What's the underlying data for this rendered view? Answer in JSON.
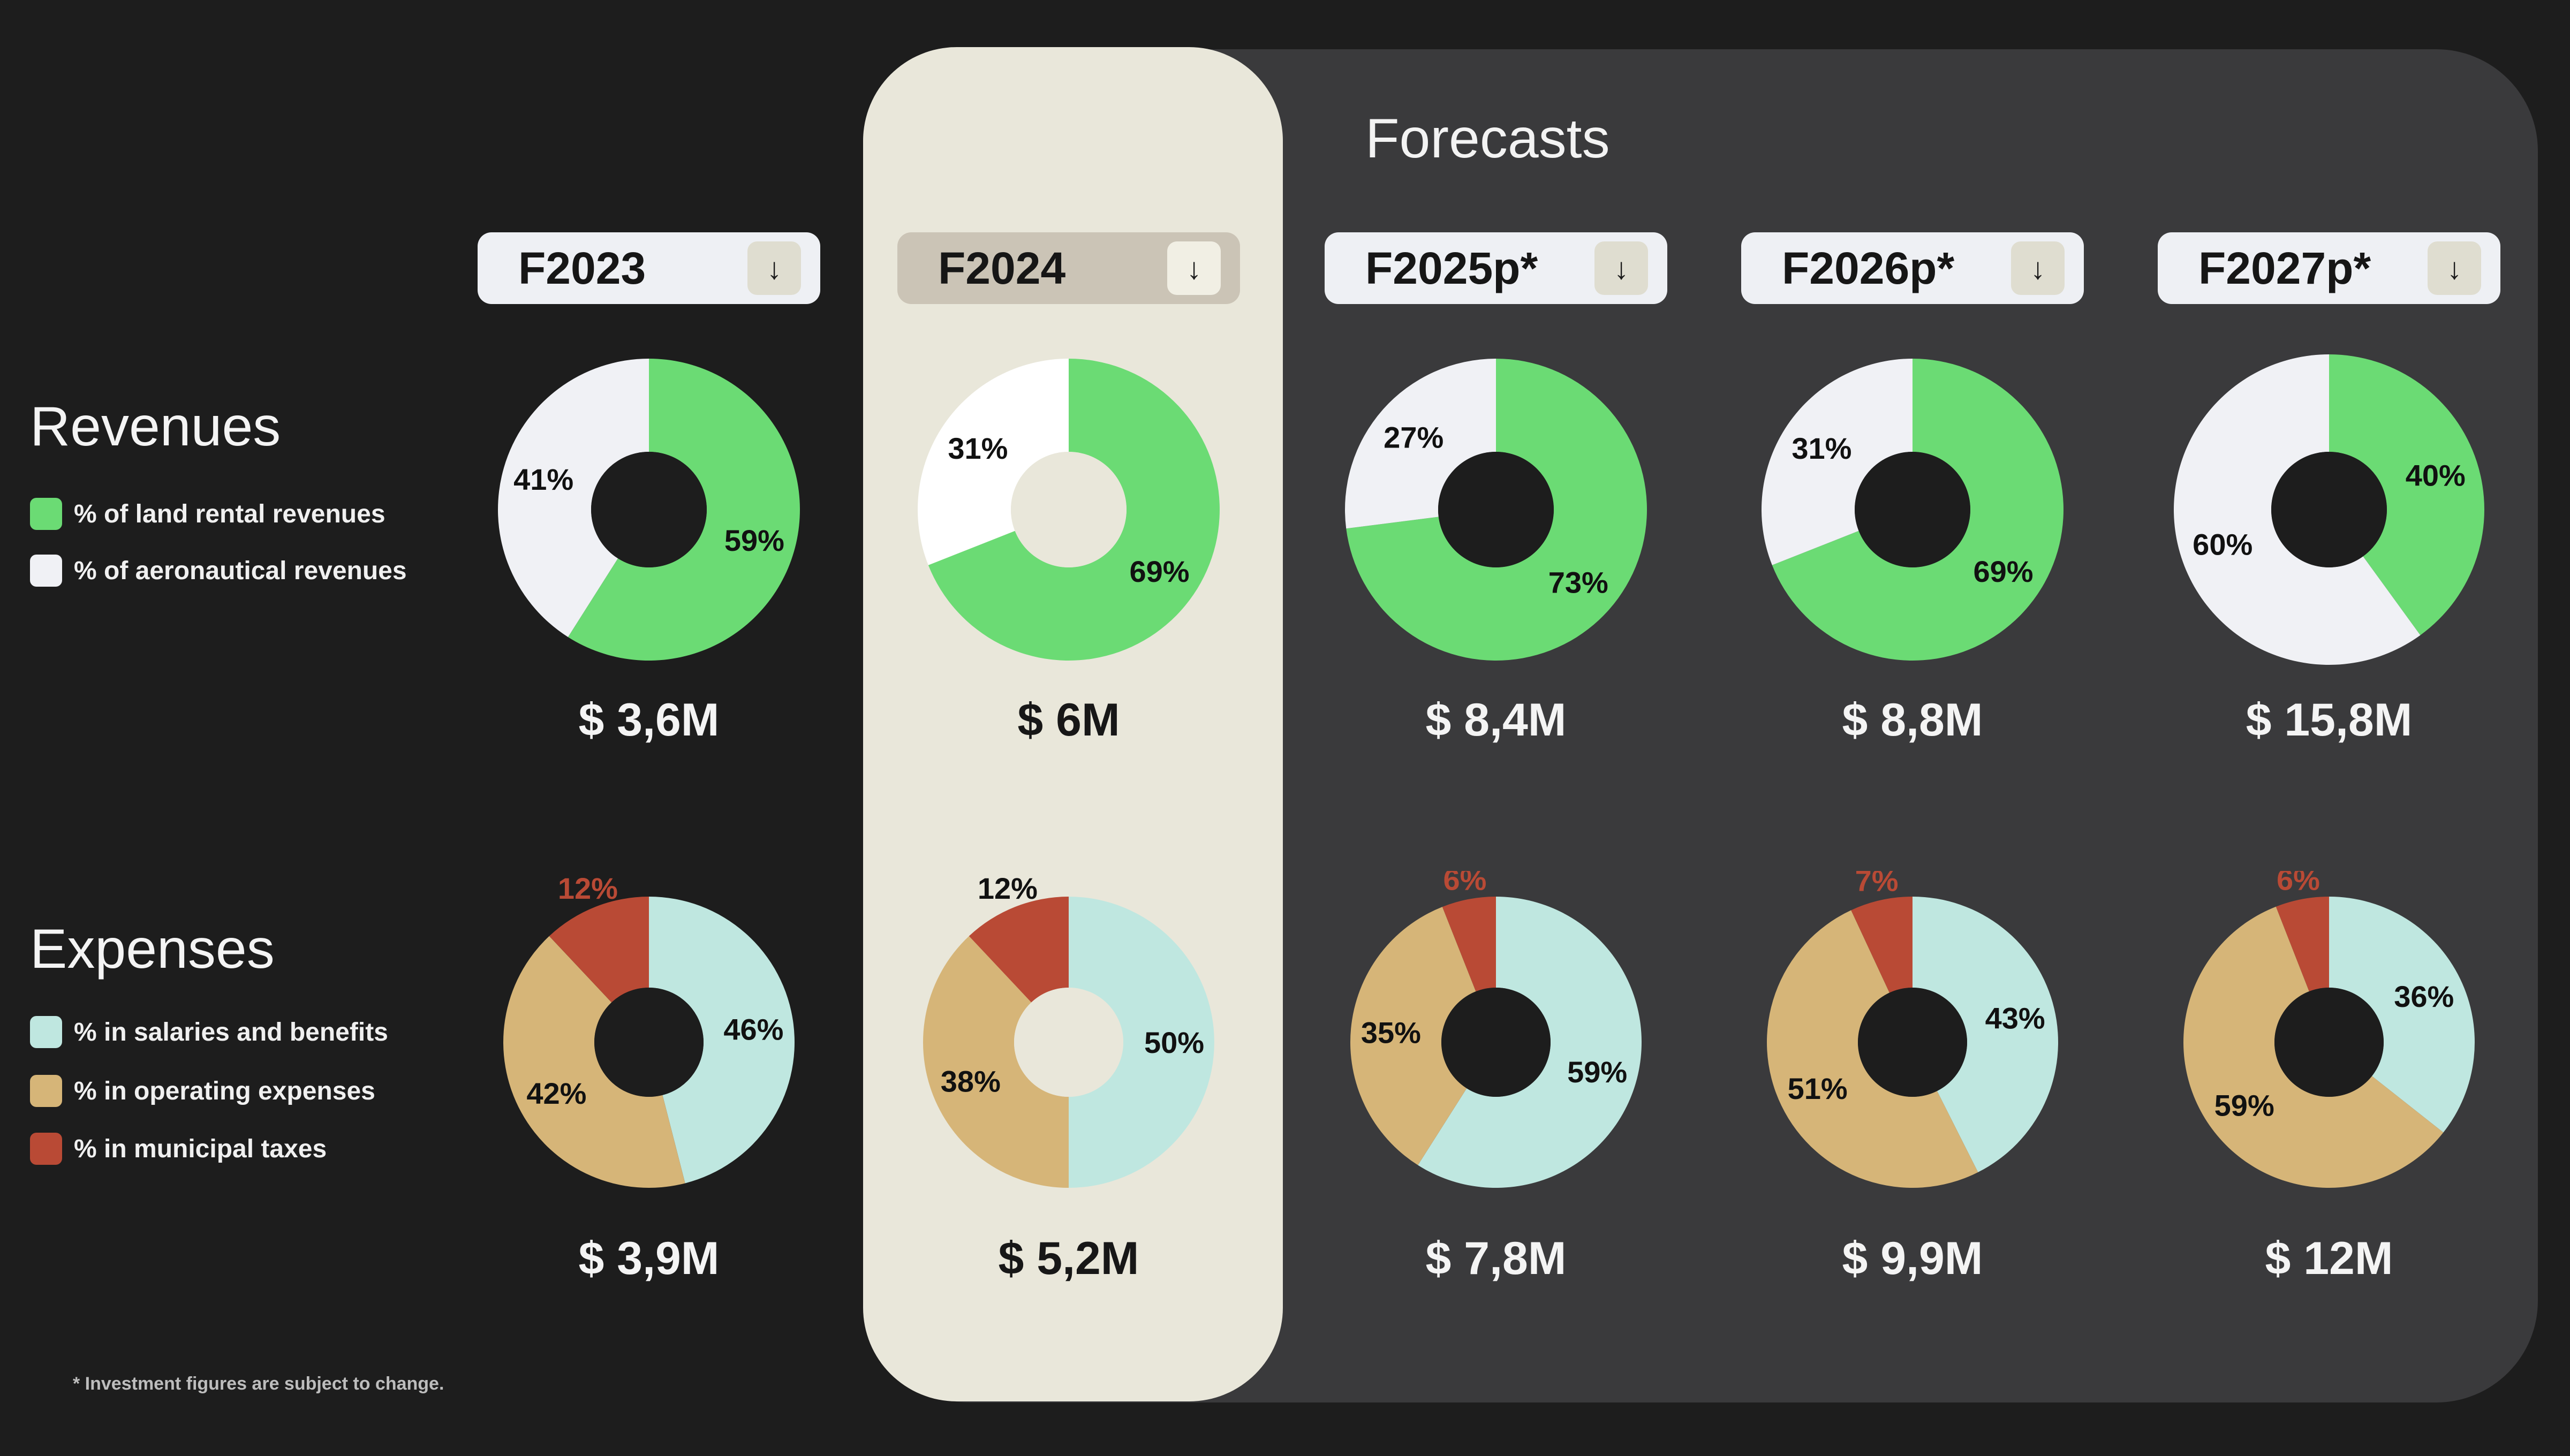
{
  "header": {
    "forecasts_title": "Forecasts"
  },
  "revenues": {
    "title": "Revenues",
    "legend": [
      {
        "label": "% of land rental revenues",
        "color": "#6bdb74"
      },
      {
        "label": "% of aeronautical revenues",
        "color": "#f0f1f5"
      }
    ]
  },
  "expenses": {
    "title": "Expenses",
    "legend": [
      {
        "label": "% in salaries and benefits",
        "color": "#bfe7e0"
      },
      {
        "label": " % in operating expenses",
        "color": "#d6b578"
      },
      {
        "label": "% in municipal taxes",
        "color": "#b94a35"
      }
    ]
  },
  "footnote": "* Investment figures are subject to change.",
  "years": [
    {
      "label": "F2023",
      "button": "↓",
      "rev_total": "$ 3,6M",
      "exp_total": "$ 3,9M"
    },
    {
      "label": "F2024",
      "button": "↓",
      "rev_total": "$ 6M",
      "exp_total": "$ 5,2M"
    },
    {
      "label": "F2025p*",
      "button": "↓",
      "rev_total": "$ 8,4M",
      "exp_total": "$ 7,8M"
    },
    {
      "label": "F2026p*",
      "button": "↓",
      "rev_total": "$ 8,8M",
      "exp_total": "$ 9,9M"
    },
    {
      "label": "F2027p*",
      "button": "↓",
      "rev_total": "$ 15,8M",
      "exp_total": "$ 12M"
    }
  ],
  "colors": {
    "land": "#6bdb74",
    "aero": "#f0f1f5",
    "aero_active": "#ffffff",
    "salaries": "#bfe7e0",
    "operating": "#d6b578",
    "taxes": "#b94a35",
    "hole_dark": "#1d1d1d",
    "hole_light": "#e9e7da",
    "highlight": "#e9e7da"
  },
  "chart_data": [
    {
      "type": "pie",
      "title": "Revenues",
      "categories": [
        "% of land rental revenues",
        "% of aeronautical revenues"
      ],
      "x": [
        "F2023",
        "F2024",
        "F2025p*",
        "F2026p*",
        "F2027p*"
      ],
      "series": [
        {
          "name": "% of land rental revenues",
          "values": [
            59,
            69,
            73,
            69,
            40
          ]
        },
        {
          "name": "% of aeronautical revenues",
          "values": [
            41,
            31,
            27,
            31,
            60
          ]
        }
      ],
      "totals": [
        "$ 3,6M",
        "$ 6M",
        "$ 8,4M",
        "$ 8,8M",
        "$ 15,8M"
      ]
    },
    {
      "type": "pie",
      "title": "Expenses",
      "categories": [
        "% in salaries and benefits",
        " % in operating expenses",
        "% in municipal taxes"
      ],
      "x": [
        "F2023",
        "F2024",
        "F2025p*",
        "F2026p*",
        "F2027p*"
      ],
      "series": [
        {
          "name": "% in salaries and benefits",
          "values": [
            46,
            50,
            59,
            43,
            36
          ]
        },
        {
          "name": " % in operating expenses",
          "values": [
            42,
            38,
            35,
            51,
            59
          ]
        },
        {
          "name": "% in municipal taxes",
          "values": [
            12,
            12,
            6,
            7,
            6
          ]
        }
      ],
      "totals": [
        "$ 3,9M",
        "$ 5,2M",
        "$ 7,8M",
        "$ 9,9M",
        "$ 12M"
      ]
    }
  ]
}
